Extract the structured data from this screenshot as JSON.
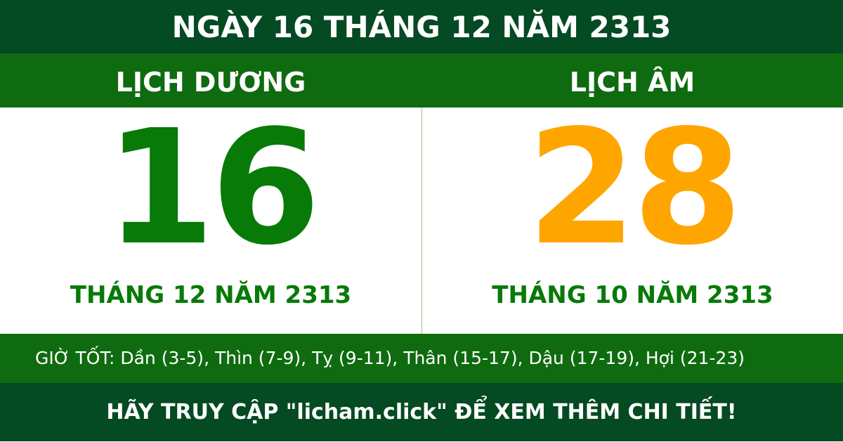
{
  "title": "NGÀY 16 THÁNG 12 NĂM 2313",
  "solar": {
    "label": "LỊCH DƯƠNG",
    "day": "16",
    "month_year": "THÁNG 12 NĂM 2313"
  },
  "lunar": {
    "label": "LỊCH ÂM",
    "day": "28",
    "month_year": "THÁNG 10 NĂM 2313"
  },
  "good_hours": "GIỜ TỐT: Dần (3-5), Thìn (7-9), Tỵ (9-11), Thân (15-17), Dậu (17-19), Hợi (21-23)",
  "footer": "HÃY TRUY CẬP \"licham.click\" ĐỂ XEM THÊM CHI TIẾT!",
  "colors": {
    "dark_green": "#044a22",
    "green": "#0f6b10",
    "solar_day": "#077a07",
    "lunar_day": "#ffa500"
  }
}
